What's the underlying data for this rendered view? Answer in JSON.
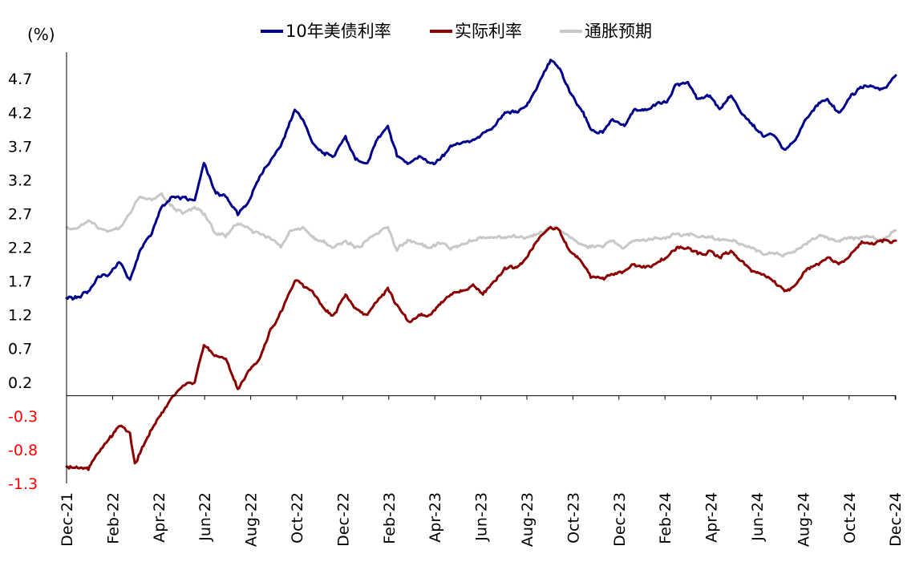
{
  "chart_data": {
    "type": "line",
    "unit_label": "(%)",
    "legend_placement": "top-center",
    "grid": false,
    "ylim": [
      -1.3,
      5.0
    ],
    "y_ticks": [
      4.7,
      4.2,
      3.7,
      3.2,
      2.7,
      2.2,
      1.7,
      1.2,
      0.7,
      0.2,
      -0.3,
      -0.8,
      -1.3
    ],
    "x_categories": [
      "Dec-21",
      "Feb-22",
      "Apr-22",
      "Jun-22",
      "Aug-22",
      "Oct-22",
      "Dec-22",
      "Feb-23",
      "Apr-23",
      "Jun-23",
      "Aug-23",
      "Oct-23",
      "Dec-23",
      "Feb-24",
      "Apr-24",
      "Jun-24",
      "Aug-24",
      "Oct-24",
      "Dec-24"
    ],
    "x_range": [
      "2021-12-01",
      "2025-02-20"
    ],
    "colors": {
      "negative_tick": "#ff0000",
      "axis": "#000000"
    },
    "series": [
      {
        "name": "10年美债利率",
        "color": "#00008b",
        "points": [
          [
            "2021-12-01",
            1.45
          ],
          [
            "2021-12-15",
            1.45
          ],
          [
            "2022-01-01",
            1.55
          ],
          [
            "2022-01-15",
            1.77
          ],
          [
            "2022-02-01",
            1.82
          ],
          [
            "2022-02-15",
            1.97
          ],
          [
            "2022-03-01",
            1.72
          ],
          [
            "2022-03-15",
            2.15
          ],
          [
            "2022-04-01",
            2.4
          ],
          [
            "2022-04-15",
            2.8
          ],
          [
            "2022-05-01",
            2.95
          ],
          [
            "2022-05-15",
            2.95
          ],
          [
            "2022-06-01",
            2.9
          ],
          [
            "2022-06-14",
            3.45
          ],
          [
            "2022-07-01",
            3.0
          ],
          [
            "2022-07-15",
            2.95
          ],
          [
            "2022-08-01",
            2.68
          ],
          [
            "2022-08-15",
            2.85
          ],
          [
            "2022-09-01",
            3.25
          ],
          [
            "2022-09-15",
            3.45
          ],
          [
            "2022-10-01",
            3.7
          ],
          [
            "2022-10-21",
            4.24
          ],
          [
            "2022-11-01",
            4.1
          ],
          [
            "2022-11-15",
            3.75
          ],
          [
            "2022-12-01",
            3.6
          ],
          [
            "2022-12-15",
            3.55
          ],
          [
            "2023-01-01",
            3.85
          ],
          [
            "2023-01-15",
            3.5
          ],
          [
            "2023-02-01",
            3.45
          ],
          [
            "2023-02-15",
            3.8
          ],
          [
            "2023-03-02",
            4.0
          ],
          [
            "2023-03-15",
            3.55
          ],
          [
            "2023-04-01",
            3.45
          ],
          [
            "2023-04-15",
            3.55
          ],
          [
            "2023-05-01",
            3.45
          ],
          [
            "2023-05-15",
            3.5
          ],
          [
            "2023-06-01",
            3.7
          ],
          [
            "2023-06-15",
            3.75
          ],
          [
            "2023-07-01",
            3.8
          ],
          [
            "2023-07-15",
            3.9
          ],
          [
            "2023-08-01",
            4.0
          ],
          [
            "2023-08-15",
            4.2
          ],
          [
            "2023-09-01",
            4.2
          ],
          [
            "2023-09-15",
            4.3
          ],
          [
            "2023-10-01",
            4.6
          ],
          [
            "2023-10-19",
            4.98
          ],
          [
            "2023-11-01",
            4.85
          ],
          [
            "2023-11-15",
            4.5
          ],
          [
            "2023-12-01",
            4.25
          ],
          [
            "2023-12-15",
            3.95
          ],
          [
            "2024-01-01",
            3.9
          ],
          [
            "2024-01-15",
            4.1
          ],
          [
            "2024-02-01",
            4.0
          ],
          [
            "2024-02-15",
            4.25
          ],
          [
            "2024-03-01",
            4.25
          ],
          [
            "2024-03-15",
            4.3
          ],
          [
            "2024-04-01",
            4.35
          ],
          [
            "2024-04-15",
            4.62
          ],
          [
            "2024-05-01",
            4.65
          ],
          [
            "2024-05-15",
            4.4
          ],
          [
            "2024-06-01",
            4.45
          ],
          [
            "2024-06-15",
            4.25
          ],
          [
            "2024-07-01",
            4.45
          ],
          [
            "2024-07-15",
            4.2
          ],
          [
            "2024-08-01",
            4.0
          ],
          [
            "2024-08-15",
            3.85
          ],
          [
            "2024-09-01",
            3.85
          ],
          [
            "2024-09-15",
            3.65
          ],
          [
            "2024-10-01",
            3.8
          ],
          [
            "2024-10-15",
            4.1
          ],
          [
            "2024-11-01",
            4.3
          ],
          [
            "2024-11-15",
            4.4
          ],
          [
            "2024-12-01",
            4.2
          ],
          [
            "2024-12-15",
            4.4
          ],
          [
            "2025-01-01",
            4.58
          ],
          [
            "2025-01-15",
            4.6
          ],
          [
            "2025-02-01",
            4.55
          ],
          [
            "2025-02-20",
            4.75
          ]
        ]
      },
      {
        "name": "实际利率",
        "color": "#8b0000",
        "points": [
          [
            "2021-12-01",
            -1.05
          ],
          [
            "2021-12-15",
            -1.05
          ],
          [
            "2022-01-01",
            -1.1
          ],
          [
            "2022-01-15",
            -0.85
          ],
          [
            "2022-02-01",
            -0.6
          ],
          [
            "2022-02-15",
            -0.45
          ],
          [
            "2022-03-01",
            -0.55
          ],
          [
            "2022-03-08",
            -1.0
          ],
          [
            "2022-03-22",
            -0.7
          ],
          [
            "2022-04-01",
            -0.5
          ],
          [
            "2022-04-15",
            -0.25
          ],
          [
            "2022-05-01",
            0.0
          ],
          [
            "2022-05-15",
            0.15
          ],
          [
            "2022-06-01",
            0.2
          ],
          [
            "2022-06-14",
            0.75
          ],
          [
            "2022-07-01",
            0.6
          ],
          [
            "2022-07-15",
            0.55
          ],
          [
            "2022-08-01",
            0.1
          ],
          [
            "2022-08-15",
            0.35
          ],
          [
            "2022-09-01",
            0.55
          ],
          [
            "2022-09-15",
            0.95
          ],
          [
            "2022-10-01",
            1.25
          ],
          [
            "2022-10-21",
            1.7
          ],
          [
            "2022-11-01",
            1.65
          ],
          [
            "2022-11-15",
            1.55
          ],
          [
            "2022-12-01",
            1.3
          ],
          [
            "2022-12-15",
            1.2
          ],
          [
            "2023-01-01",
            1.5
          ],
          [
            "2023-01-15",
            1.3
          ],
          [
            "2023-02-01",
            1.2
          ],
          [
            "2023-02-15",
            1.4
          ],
          [
            "2023-03-02",
            1.6
          ],
          [
            "2023-03-15",
            1.35
          ],
          [
            "2023-04-01",
            1.1
          ],
          [
            "2023-04-15",
            1.2
          ],
          [
            "2023-05-01",
            1.2
          ],
          [
            "2023-05-15",
            1.35
          ],
          [
            "2023-06-01",
            1.5
          ],
          [
            "2023-06-15",
            1.55
          ],
          [
            "2023-07-01",
            1.65
          ],
          [
            "2023-07-15",
            1.5
          ],
          [
            "2023-08-01",
            1.7
          ],
          [
            "2023-08-15",
            1.9
          ],
          [
            "2023-09-01",
            1.9
          ],
          [
            "2023-09-15",
            2.05
          ],
          [
            "2023-10-01",
            2.3
          ],
          [
            "2023-10-19",
            2.5
          ],
          [
            "2023-11-01",
            2.45
          ],
          [
            "2023-11-15",
            2.15
          ],
          [
            "2023-12-01",
            2.0
          ],
          [
            "2023-12-15",
            1.75
          ],
          [
            "2024-01-01",
            1.75
          ],
          [
            "2024-01-15",
            1.8
          ],
          [
            "2024-02-01",
            1.85
          ],
          [
            "2024-02-15",
            1.95
          ],
          [
            "2024-03-01",
            1.9
          ],
          [
            "2024-03-15",
            1.95
          ],
          [
            "2024-04-01",
            2.05
          ],
          [
            "2024-04-15",
            2.2
          ],
          [
            "2024-05-01",
            2.2
          ],
          [
            "2024-05-15",
            2.1
          ],
          [
            "2024-06-01",
            2.15
          ],
          [
            "2024-06-15",
            2.05
          ],
          [
            "2024-07-01",
            2.15
          ],
          [
            "2024-07-15",
            2.0
          ],
          [
            "2024-08-01",
            1.85
          ],
          [
            "2024-08-15",
            1.8
          ],
          [
            "2024-09-01",
            1.7
          ],
          [
            "2024-09-15",
            1.55
          ],
          [
            "2024-10-01",
            1.65
          ],
          [
            "2024-10-15",
            1.85
          ],
          [
            "2024-11-01",
            1.95
          ],
          [
            "2024-11-15",
            2.05
          ],
          [
            "2024-12-01",
            1.95
          ],
          [
            "2024-12-15",
            2.05
          ],
          [
            "2025-01-01",
            2.25
          ],
          [
            "2025-01-15",
            2.25
          ],
          [
            "2025-02-01",
            2.28
          ],
          [
            "2025-02-20",
            2.3
          ]
        ]
      },
      {
        "name": "通胀预期",
        "color": "#c8c8c8",
        "points": [
          [
            "2021-12-01",
            2.5
          ],
          [
            "2021-12-15",
            2.48
          ],
          [
            "2022-01-01",
            2.6
          ],
          [
            "2022-01-15",
            2.48
          ],
          [
            "2022-02-01",
            2.45
          ],
          [
            "2022-02-15",
            2.5
          ],
          [
            "2022-03-01",
            2.7
          ],
          [
            "2022-03-15",
            2.95
          ],
          [
            "2022-04-01",
            2.9
          ],
          [
            "2022-04-15",
            3.0
          ],
          [
            "2022-05-01",
            2.8
          ],
          [
            "2022-05-15",
            2.7
          ],
          [
            "2022-06-01",
            2.8
          ],
          [
            "2022-06-15",
            2.7
          ],
          [
            "2022-07-01",
            2.4
          ],
          [
            "2022-07-15",
            2.35
          ],
          [
            "2022-08-01",
            2.55
          ],
          [
            "2022-08-15",
            2.5
          ],
          [
            "2022-09-01",
            2.4
          ],
          [
            "2022-09-15",
            2.35
          ],
          [
            "2022-10-01",
            2.2
          ],
          [
            "2022-10-15",
            2.45
          ],
          [
            "2022-11-01",
            2.5
          ],
          [
            "2022-11-15",
            2.35
          ],
          [
            "2022-12-01",
            2.3
          ],
          [
            "2022-12-15",
            2.2
          ],
          [
            "2023-01-01",
            2.3
          ],
          [
            "2023-01-15",
            2.2
          ],
          [
            "2023-02-01",
            2.3
          ],
          [
            "2023-02-15",
            2.4
          ],
          [
            "2023-03-02",
            2.5
          ],
          [
            "2023-03-15",
            2.15
          ],
          [
            "2023-04-01",
            2.3
          ],
          [
            "2023-04-15",
            2.25
          ],
          [
            "2023-05-01",
            2.2
          ],
          [
            "2023-05-15",
            2.25
          ],
          [
            "2023-06-01",
            2.2
          ],
          [
            "2023-06-15",
            2.25
          ],
          [
            "2023-07-01",
            2.3
          ],
          [
            "2023-07-15",
            2.35
          ],
          [
            "2023-08-01",
            2.35
          ],
          [
            "2023-08-15",
            2.35
          ],
          [
            "2023-09-01",
            2.35
          ],
          [
            "2023-09-15",
            2.35
          ],
          [
            "2023-10-01",
            2.4
          ],
          [
            "2023-10-19",
            2.5
          ],
          [
            "2023-11-01",
            2.45
          ],
          [
            "2023-11-15",
            2.35
          ],
          [
            "2023-12-01",
            2.25
          ],
          [
            "2023-12-15",
            2.2
          ],
          [
            "2024-01-01",
            2.2
          ],
          [
            "2024-01-15",
            2.3
          ],
          [
            "2024-02-01",
            2.2
          ],
          [
            "2024-02-15",
            2.3
          ],
          [
            "2024-03-01",
            2.3
          ],
          [
            "2024-03-15",
            2.35
          ],
          [
            "2024-04-01",
            2.35
          ],
          [
            "2024-04-15",
            2.4
          ],
          [
            "2024-05-01",
            2.4
          ],
          [
            "2024-05-15",
            2.35
          ],
          [
            "2024-06-01",
            2.35
          ],
          [
            "2024-06-15",
            2.3
          ],
          [
            "2024-07-01",
            2.3
          ],
          [
            "2024-07-15",
            2.25
          ],
          [
            "2024-08-01",
            2.2
          ],
          [
            "2024-08-15",
            2.1
          ],
          [
            "2024-09-01",
            2.1
          ],
          [
            "2024-09-15",
            2.1
          ],
          [
            "2024-10-01",
            2.15
          ],
          [
            "2024-10-15",
            2.25
          ],
          [
            "2024-11-01",
            2.35
          ],
          [
            "2024-11-15",
            2.35
          ],
          [
            "2024-12-01",
            2.3
          ],
          [
            "2024-12-15",
            2.35
          ],
          [
            "2025-01-01",
            2.35
          ],
          [
            "2025-01-15",
            2.35
          ],
          [
            "2025-02-01",
            2.3
          ],
          [
            "2025-02-20",
            2.45
          ]
        ]
      }
    ]
  }
}
